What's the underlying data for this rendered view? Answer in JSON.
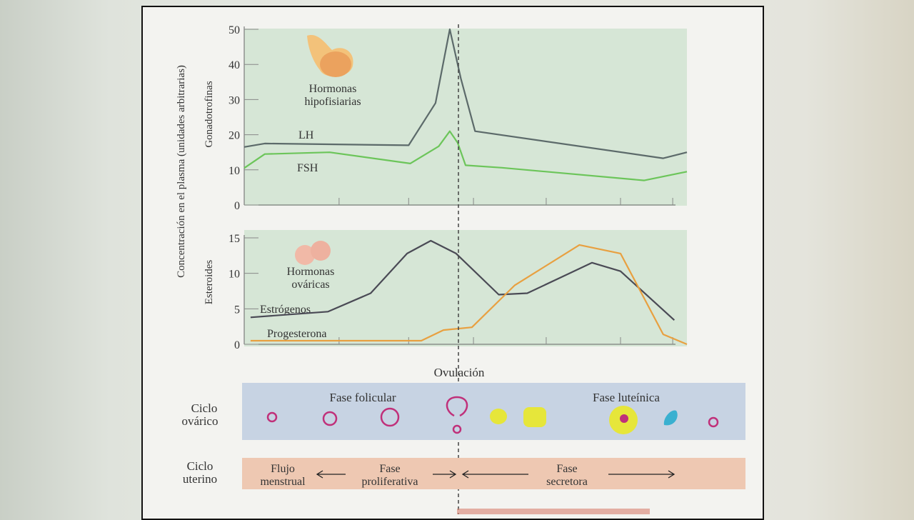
{
  "chart_data": [
    {
      "type": "line",
      "title": "Hormonas hipofisiarias",
      "ylabel": "Gonadotrofinas",
      "ylim": [
        0,
        50
      ],
      "yticks": [
        0,
        10,
        20,
        30,
        40,
        50
      ],
      "xlim": [
        0,
        28
      ],
      "series": [
        {
          "name": "LH",
          "color": "#5c6a6a",
          "x": [
            0,
            1.3,
            10.4,
            12.1,
            13,
            13.7,
            14.6,
            26.5,
            28
          ],
          "y": [
            16.5,
            17.5,
            17,
            29,
            50,
            36,
            21,
            13.3,
            15
          ]
        },
        {
          "name": "FSH",
          "color": "#6cc55a",
          "x": [
            0,
            1.3,
            5.4,
            10.5,
            12.3,
            13,
            13.5,
            14,
            16.3,
            25.3,
            28
          ],
          "y": [
            10.5,
            14.5,
            15,
            11.8,
            16.7,
            21,
            17.7,
            11.3,
            10.6,
            7,
            9.5
          ]
        }
      ]
    },
    {
      "type": "line",
      "title": "Hormonas ováricas",
      "ylabel": "Esteroides",
      "ylim": [
        0,
        15
      ],
      "yticks": [
        0,
        5,
        10,
        15
      ],
      "xlim": [
        0,
        28
      ],
      "series": [
        {
          "name": "Estrógenos",
          "color": "#4a4a55",
          "x": [
            0.4,
            5.3,
            8,
            10.3,
            11.8,
            13.4,
            16.1,
            17.9,
            22,
            23.8,
            27.2
          ],
          "y": [
            3.8,
            4.6,
            7.2,
            12.8,
            14.6,
            12.8,
            7,
            7.2,
            11.5,
            10.3,
            3.4
          ]
        },
        {
          "name": "Progesterona",
          "color": "#e8a040",
          "x": [
            0.4,
            11.2,
            12.6,
            14.4,
            17.1,
            21.2,
            23.8,
            26.5,
            28
          ],
          "y": [
            0.5,
            0.5,
            2,
            2.4,
            8.3,
            14,
            12.8,
            1.4,
            0
          ]
        }
      ]
    }
  ],
  "shared_ylabel": "Concentración en el plasma (unidades arbitrarias)",
  "ovulation_label": "Ovulación",
  "ovarian": {
    "label1": "Ciclo",
    "label2": "ovárico",
    "phase1": "Fase folicular",
    "phase2": "Fase luteínica"
  },
  "uterine": {
    "label1": "Ciclo",
    "label2": "uterino",
    "flujo1": "Flujo",
    "flujo2": "menstrual",
    "prolif1": "Fase",
    "prolif2": "proliferativa",
    "secr1": "Fase",
    "secr2": "secretora"
  }
}
